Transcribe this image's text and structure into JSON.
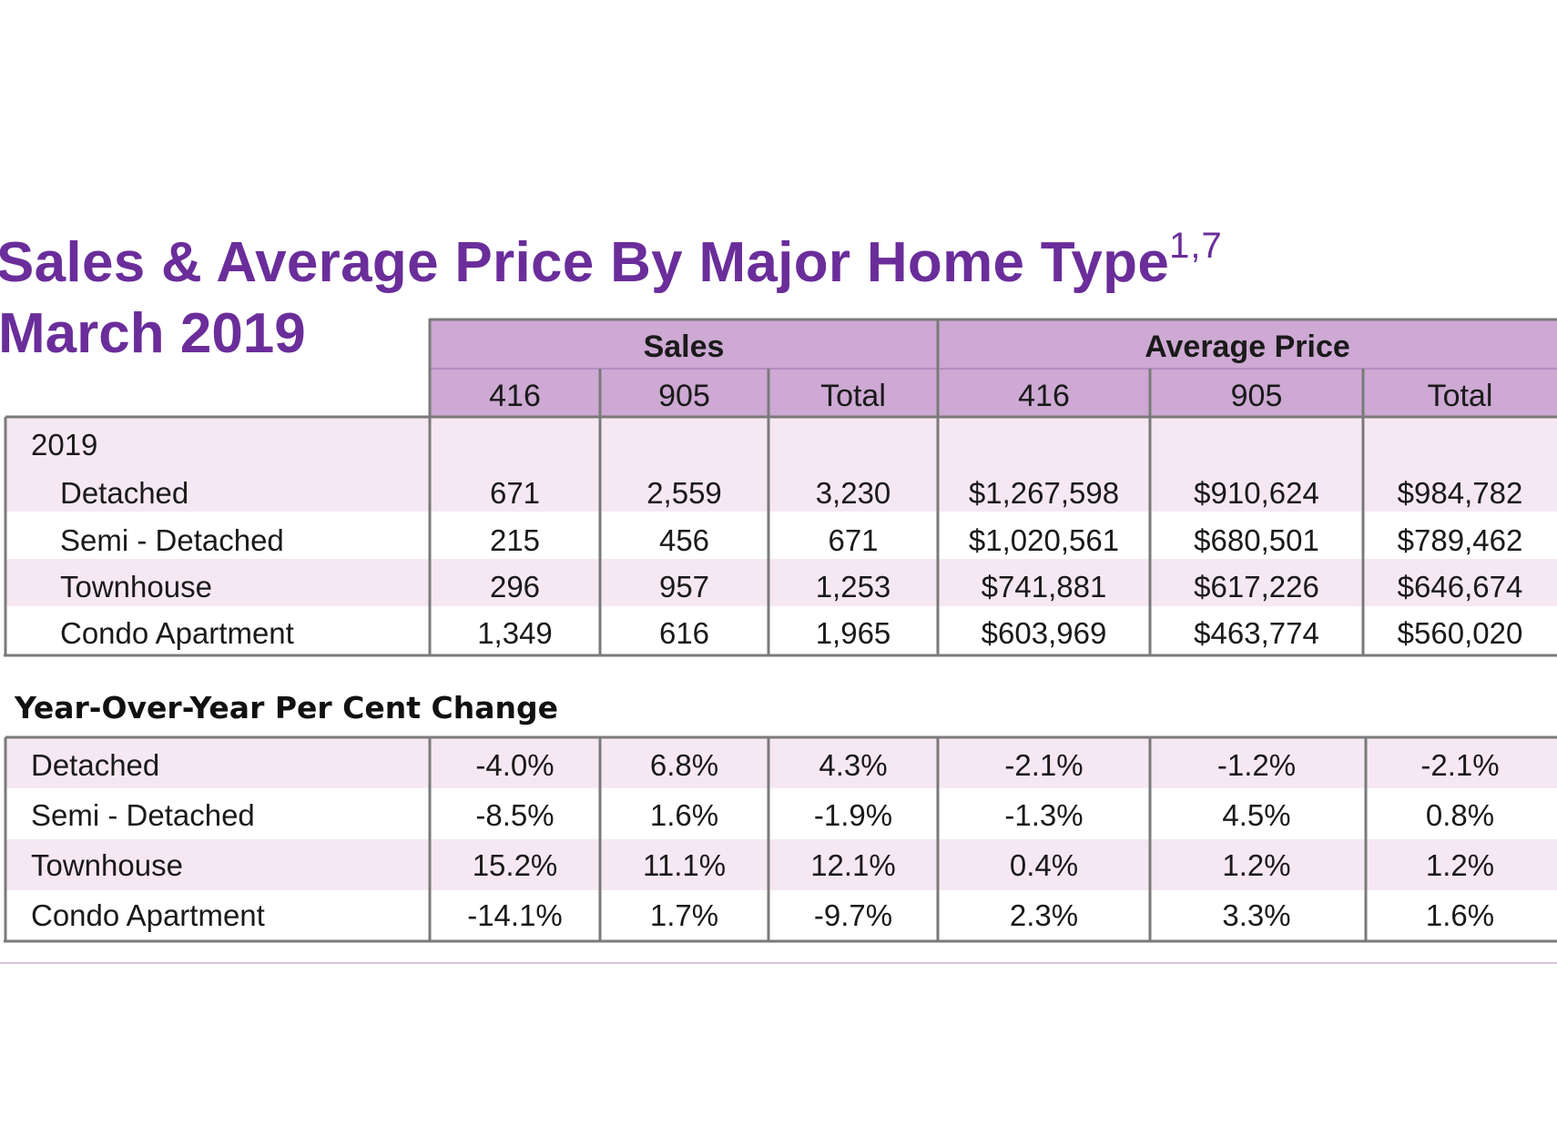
{
  "title": "Sales & Average Price By Major Home Type",
  "title_superscript": "1,7",
  "subtitle": "March 2019",
  "chart_data": {
    "type": "table",
    "title": "Sales & Average Price By Major Home Type",
    "superscript": "1,7",
    "period": "March 2019",
    "group_headers": [
      "Sales",
      "Average Price"
    ],
    "column_headers": [
      "416",
      "905",
      "Total",
      "416",
      "905",
      "Total"
    ],
    "main_section_label": "2019",
    "main_rows": [
      {
        "label": "Detached",
        "values": [
          "671",
          "2,559",
          "3,230",
          "$1,267,598",
          "$910,624",
          "$984,782"
        ]
      },
      {
        "label": "Semi - Detached",
        "values": [
          "215",
          "456",
          "671",
          "$1,020,561",
          "$680,501",
          "$789,462"
        ]
      },
      {
        "label": "Townhouse",
        "values": [
          "296",
          "957",
          "1,253",
          "$741,881",
          "$617,226",
          "$646,674"
        ]
      },
      {
        "label": "Condo Apartment",
        "values": [
          "1,349",
          "616",
          "1,965",
          "$603,969",
          "$463,774",
          "$560,020"
        ]
      }
    ],
    "yoy_heading": "Year-Over-Year Per Cent Change",
    "yoy_rows": [
      {
        "label": "Detached",
        "values": [
          "-4.0%",
          "6.8%",
          "4.3%",
          "-2.1%",
          "-1.2%",
          "-2.1%"
        ]
      },
      {
        "label": "Semi - Detached",
        "values": [
          "-8.5%",
          "1.6%",
          "-1.9%",
          "-1.3%",
          "4.5%",
          "0.8%"
        ]
      },
      {
        "label": "Townhouse",
        "values": [
          "15.2%",
          "11.1%",
          "12.1%",
          "0.4%",
          "1.2%",
          "1.2%"
        ]
      },
      {
        "label": "Condo Apartment",
        "values": [
          "-14.1%",
          "1.7%",
          "-9.7%",
          "2.3%",
          "3.3%",
          "1.6%"
        ]
      }
    ]
  },
  "colors": {
    "title": "#6a2d9a",
    "header_fill": "#cda9d3",
    "row_shade": "#f6e8f3",
    "border": "#7a7a7a"
  }
}
